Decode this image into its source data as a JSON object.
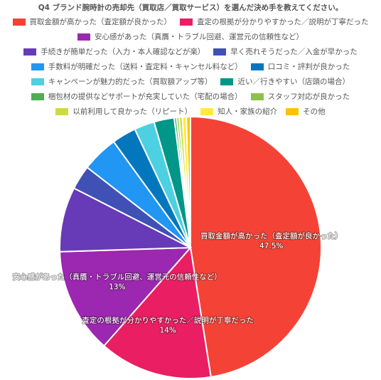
{
  "chart_data": {
    "type": "pie",
    "title": "Q4 ブランド腕時計の売却先（買取店／買取サービス）を選んだ決め手を教えてください。",
    "legend_position": "top",
    "slices": [
      {
        "label": "買取金額が高かった（査定額が良かった）",
        "value": 47.5,
        "color": "#F44336",
        "display": "47.5%"
      },
      {
        "label": "査定の根拠が分かりやすかった／説明が丁寧だった",
        "value": 14,
        "color": "#E91E63",
        "display": "14%"
      },
      {
        "label": "安心感があった（真贋・トラブル回避、運営元の信頼性など）",
        "value": 13,
        "color": "#9C27B0",
        "display": "13%"
      },
      {
        "label": "手続きが簡単だった（入力・本人確認などが楽）",
        "value": 8,
        "color": "#673AB7"
      },
      {
        "label": "早く売れそうだった／入金が早かった",
        "value": 3,
        "color": "#3F51B5"
      },
      {
        "label": "手数料が明確だった（送料・査定料・キャンセル料など）",
        "value": 4.5,
        "color": "#2196F3"
      },
      {
        "label": "口コミ・評判が良かった",
        "value": 3,
        "color": "#0277BD"
      },
      {
        "label": "キャンペーンが魅力的だった（買取額アップ等）",
        "value": 2.5,
        "color": "#4DD0E1"
      },
      {
        "label": "近い／行きやすい（店頭の場合）",
        "value": 2.5,
        "color": "#009688"
      },
      {
        "label": "梱包材の提供などサポートが充実していた（宅配の場合）",
        "value": 0.3,
        "color": "#4CAF50"
      },
      {
        "label": "スタッフ対応が良かった",
        "value": 0.3,
        "color": "#8BC34A"
      },
      {
        "label": "以前利用して良かった（リピート）",
        "value": 0.4,
        "color": "#CDDC39"
      },
      {
        "label": "知人・家族の紹介",
        "value": 0.5,
        "color": "#FFEB3B"
      },
      {
        "label": "その他",
        "value": 0.5,
        "color": "#FFC107"
      }
    ]
  }
}
